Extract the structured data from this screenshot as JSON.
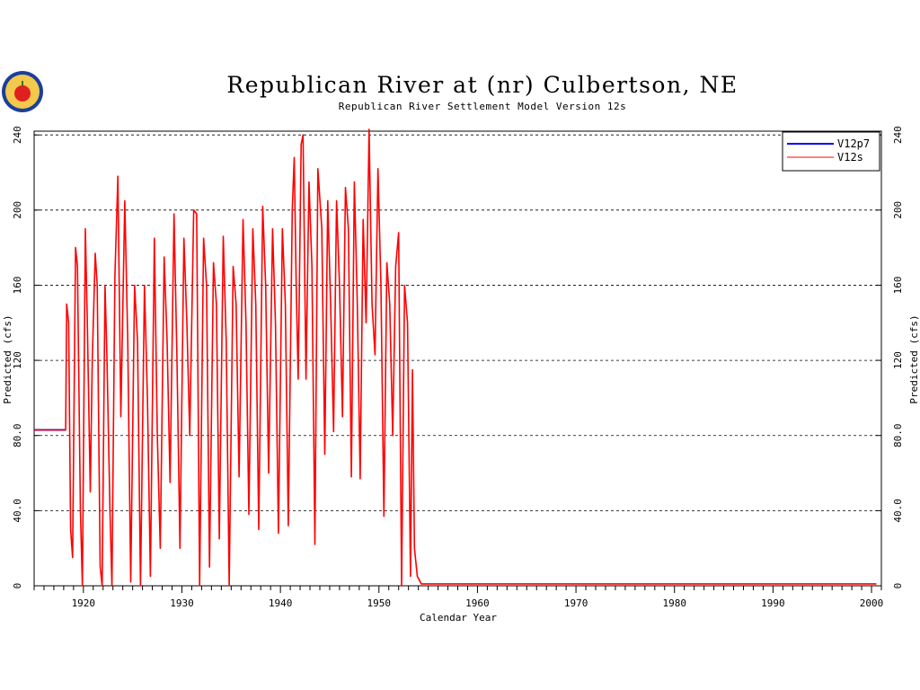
{
  "chart_data": {
    "type": "line",
    "title": "Republican River at (nr) Culbertson, NE",
    "subtitle": "Republican River Settlement Model Version 12s",
    "xlabel": "Calendar Year",
    "ylabel_left": "Predicted (cfs)",
    "ylabel_right": "Predicted (cfs)",
    "xlim": [
      1915,
      2001
    ],
    "ylim": [
      0,
      242
    ],
    "x_ticks": [
      "1920",
      "1930",
      "1940",
      "1950",
      "1960",
      "1970",
      "1980",
      "1990",
      "2000"
    ],
    "y_ticks": [
      "0",
      "40.0",
      "80.0",
      "120",
      "160",
      "200",
      "240"
    ],
    "grid": "horizontal dashed",
    "legend_position": "top-right",
    "series": [
      {
        "name": "V12p7",
        "color": "#0000ff",
        "points": [
          [
            1915.0,
            83
          ],
          [
            1918.2,
            83
          ]
        ]
      },
      {
        "name": "V12s",
        "color": "#ff0000",
        "points": [
          [
            1915.0,
            83
          ],
          [
            1918.2,
            83
          ],
          [
            1918.3,
            150
          ],
          [
            1918.5,
            140
          ],
          [
            1918.7,
            30
          ],
          [
            1918.9,
            15
          ],
          [
            1919.2,
            180
          ],
          [
            1919.4,
            170
          ],
          [
            1919.7,
            40
          ],
          [
            1919.9,
            0
          ],
          [
            1920.2,
            190
          ],
          [
            1920.4,
            140
          ],
          [
            1920.7,
            50
          ],
          [
            1920.9,
            120
          ],
          [
            1921.2,
            177
          ],
          [
            1921.4,
            160
          ],
          [
            1921.7,
            10
          ],
          [
            1921.9,
            0
          ],
          [
            1922.2,
            160
          ],
          [
            1922.4,
            120
          ],
          [
            1922.7,
            40
          ],
          [
            1922.9,
            0
          ],
          [
            1923.2,
            165
          ],
          [
            1923.5,
            218
          ],
          [
            1923.8,
            90
          ],
          [
            1924.2,
            205
          ],
          [
            1924.5,
            130
          ],
          [
            1924.8,
            2
          ],
          [
            1925.2,
            160
          ],
          [
            1925.5,
            130
          ],
          [
            1925.8,
            0
          ],
          [
            1926.2,
            160
          ],
          [
            1926.5,
            100
          ],
          [
            1926.8,
            5
          ],
          [
            1927.2,
            185
          ],
          [
            1927.5,
            80
          ],
          [
            1927.8,
            20
          ],
          [
            1928.2,
            175
          ],
          [
            1928.5,
            130
          ],
          [
            1928.8,
            55
          ],
          [
            1929.2,
            198
          ],
          [
            1929.5,
            120
          ],
          [
            1929.8,
            20
          ],
          [
            1930.2,
            185
          ],
          [
            1930.5,
            140
          ],
          [
            1930.8,
            80
          ],
          [
            1931.2,
            200
          ],
          [
            1931.5,
            198
          ],
          [
            1931.8,
            0
          ],
          [
            1932.2,
            185
          ],
          [
            1932.5,
            160
          ],
          [
            1932.8,
            10
          ],
          [
            1933.2,
            172
          ],
          [
            1933.5,
            150
          ],
          [
            1933.8,
            25
          ],
          [
            1934.2,
            186
          ],
          [
            1934.5,
            130
          ],
          [
            1934.8,
            0
          ],
          [
            1935.2,
            170
          ],
          [
            1935.5,
            150
          ],
          [
            1935.8,
            58
          ],
          [
            1936.2,
            195
          ],
          [
            1936.5,
            140
          ],
          [
            1936.8,
            38
          ],
          [
            1937.2,
            190
          ],
          [
            1937.5,
            150
          ],
          [
            1937.8,
            30
          ],
          [
            1938.2,
            202
          ],
          [
            1938.5,
            160
          ],
          [
            1938.8,
            60
          ],
          [
            1939.2,
            190
          ],
          [
            1939.5,
            140
          ],
          [
            1939.8,
            28
          ],
          [
            1940.2,
            190
          ],
          [
            1940.5,
            150
          ],
          [
            1940.8,
            32
          ],
          [
            1941.2,
            200
          ],
          [
            1941.4,
            228
          ],
          [
            1941.6,
            160
          ],
          [
            1941.8,
            110
          ],
          [
            1942.1,
            235
          ],
          [
            1942.3,
            240
          ],
          [
            1942.6,
            110
          ],
          [
            1942.9,
            215
          ],
          [
            1943.2,
            170
          ],
          [
            1943.5,
            22
          ],
          [
            1943.8,
            222
          ],
          [
            1944.2,
            190
          ],
          [
            1944.5,
            70
          ],
          [
            1944.8,
            205
          ],
          [
            1945.1,
            150
          ],
          [
            1945.4,
            82
          ],
          [
            1945.7,
            205
          ],
          [
            1946.0,
            160
          ],
          [
            1946.3,
            90
          ],
          [
            1946.6,
            212
          ],
          [
            1946.9,
            190
          ],
          [
            1947.2,
            58
          ],
          [
            1947.5,
            215
          ],
          [
            1947.8,
            150
          ],
          [
            1948.1,
            57
          ],
          [
            1948.4,
            195
          ],
          [
            1948.7,
            140
          ],
          [
            1949.0,
            243
          ],
          [
            1949.3,
            150
          ],
          [
            1949.6,
            123
          ],
          [
            1949.9,
            222
          ],
          [
            1950.2,
            160
          ],
          [
            1950.5,
            37
          ],
          [
            1950.8,
            172
          ],
          [
            1951.1,
            150
          ],
          [
            1951.4,
            80
          ],
          [
            1951.7,
            170
          ],
          [
            1952.0,
            188
          ],
          [
            1952.3,
            0
          ],
          [
            1952.6,
            160
          ],
          [
            1952.9,
            140
          ],
          [
            1953.2,
            5
          ],
          [
            1953.4,
            115
          ],
          [
            1953.6,
            20
          ],
          [
            1953.9,
            5
          ],
          [
            1954.3,
            1
          ],
          [
            1957.0,
            1
          ],
          [
            1960.0,
            1
          ],
          [
            1965.0,
            1
          ],
          [
            1970.0,
            1
          ],
          [
            1975.0,
            1
          ],
          [
            1980.0,
            1
          ],
          [
            1985.0,
            1
          ],
          [
            1990.0,
            1
          ],
          [
            1995.0,
            1
          ],
          [
            2000.5,
            1
          ]
        ]
      }
    ]
  }
}
